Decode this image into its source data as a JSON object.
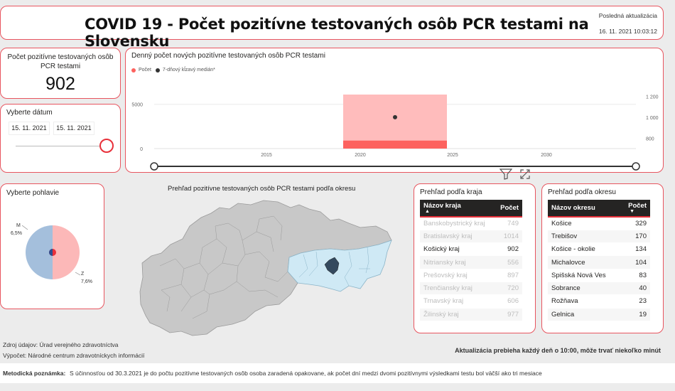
{
  "header": {
    "title": "COVID 19 - Počet pozitívne testovaných osôb PCR testami na Slovensku",
    "update_label": "Posledná aktualizácia",
    "update_value": "16. 11. 2021 10:03:12"
  },
  "kpi": {
    "label": "Počet pozitívne testovaných osôb PCR testami",
    "value": "902"
  },
  "date_filter": {
    "label": "Vyberte dátum",
    "from": "15. 11. 2021",
    "to": "15. 11. 2021"
  },
  "daily_chart": {
    "title": "Denný počet nových pozitívne testovaných osôb PCR testami",
    "legend": [
      "Počet",
      "7-dňový kĺzavý medián*"
    ]
  },
  "chart_data": {
    "type": "bar",
    "title": "Denný počet nových pozitívne testovaných osôb PCR testami",
    "x_ticks": [
      "2015",
      "2020",
      "2025",
      "2030"
    ],
    "y_left_ticks": [
      "0",
      "5000"
    ],
    "y_right_ticks": [
      "800",
      "1 000",
      "1 200"
    ],
    "series": [
      {
        "name": "Počet",
        "x": [
          "15. 11. 2021"
        ],
        "values": [
          902
        ],
        "color": "#fd625e"
      },
      {
        "name": "7-dňový kĺzavý medián*",
        "x": [
          "15. 11. 2021"
        ],
        "values": [
          1000
        ],
        "color": "#333333",
        "axis": "right"
      }
    ],
    "ylim_left": [
      0,
      6500
    ],
    "ylim_right": [
      700,
      1250
    ]
  },
  "gender": {
    "label": "Vyberte pohlavie",
    "labels": [
      "M",
      "Z"
    ],
    "values": [
      "6,5%",
      "7,6%"
    ],
    "colors": [
      "#a4bfdc",
      "#fcb8b8"
    ]
  },
  "map": {
    "title": "Prehľad pozitívne testovaných osôb PCR testami podľa okresu"
  },
  "kraj_table": {
    "title": "Prehľad podľa kraja",
    "headers": [
      "Názov kraja",
      "Počet"
    ],
    "rows": [
      [
        "Banskobystrický kraj",
        "749"
      ],
      [
        "Bratislavský kraj",
        "1014"
      ],
      [
        "Košický kraj",
        "902"
      ],
      [
        "Nitriansky kraj",
        "556"
      ],
      [
        "Prešovský kraj",
        "897"
      ],
      [
        "Trenčiansky kraj",
        "720"
      ],
      [
        "Trnavský kraj",
        "606"
      ],
      [
        "Žilinský kraj",
        "977"
      ]
    ]
  },
  "okres_table": {
    "title": "Prehľad podľa okresu",
    "headers": [
      "Názov okresu",
      "Počet"
    ],
    "rows": [
      [
        "Košice",
        "329"
      ],
      [
        "Trebišov",
        "170"
      ],
      [
        "Košice - okolie",
        "134"
      ],
      [
        "Michalovce",
        "104"
      ],
      [
        "Spišská Nová Ves",
        "83"
      ],
      [
        "Sobrance",
        "40"
      ],
      [
        "Rožňava",
        "23"
      ],
      [
        "Gelnica",
        "19"
      ]
    ]
  },
  "footer": {
    "source": "Zdroj údajov: Úrad verejného zdravotníctva",
    "calc": "Výpočet: Národné centrum zdravotníckych informácií",
    "update_note": "Aktualizácia prebieha každý deň o 10:00, môže trvať niekoľko minút",
    "method_label": "Metodická poznámka:",
    "method_text": "S účinnosťou od 30.3.2021 je do počtu pozitívne testovaných osôb osoba zaradená opakovane, ak počet dní medzi dvomi pozitívnymi výsledkami testu bol väčší ako tri mesiace"
  }
}
